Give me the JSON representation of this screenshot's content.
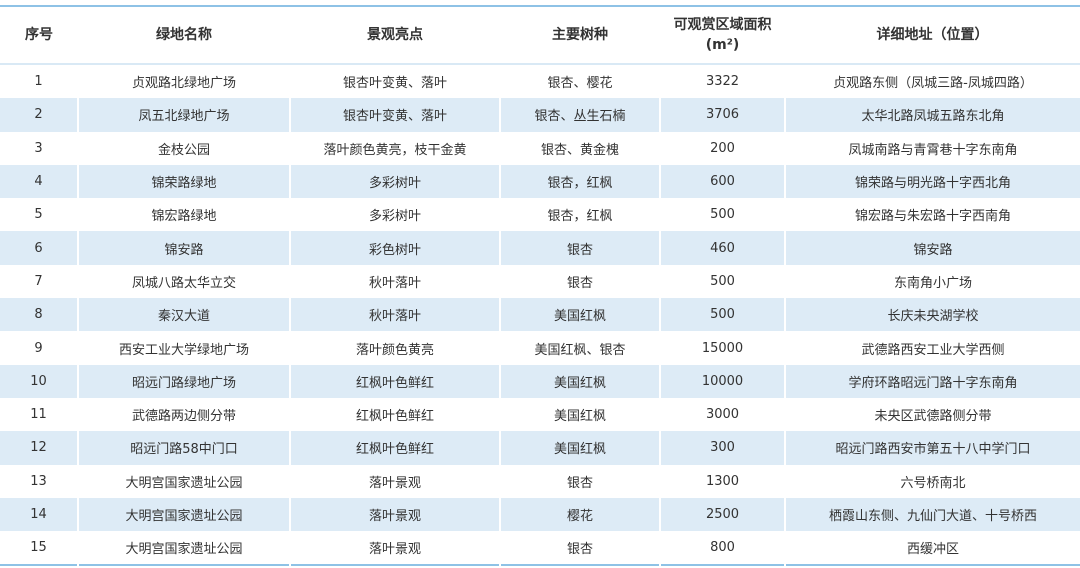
{
  "table": {
    "headers": [
      "序号",
      "绿地名称",
      "景观亮点",
      "主要树种",
      "可观赏区域面积",
      "详细地址（位置）"
    ],
    "area_unit": "(m²)",
    "rows": [
      [
        "1",
        "贞观路北绿地广场",
        "银杏叶变黄、落叶",
        "银杏、樱花",
        "3322",
        "贞观路东侧（凤城三路-凤城四路）"
      ],
      [
        "2",
        "凤五北绿地广场",
        "银杏叶变黄、落叶",
        "银杏、丛生石楠",
        "3706",
        "太华北路凤城五路东北角"
      ],
      [
        "3",
        "金枝公园",
        "落叶颜色黄亮，枝干金黄",
        "银杏、黄金槐",
        "200",
        "凤城南路与青霄巷十字东南角"
      ],
      [
        "4",
        "锦荣路绿地",
        "多彩树叶",
        "银杏，红枫",
        "600",
        "锦荣路与明光路十字西北角"
      ],
      [
        "5",
        "锦宏路绿地",
        "多彩树叶",
        "银杏，红枫",
        "500",
        "锦宏路与朱宏路十字西南角"
      ],
      [
        "6",
        "锦安路",
        "彩色树叶",
        "银杏",
        "460",
        "锦安路"
      ],
      [
        "7",
        "凤城八路太华立交",
        "秋叶落叶",
        "银杏",
        "500",
        "东南角小广场"
      ],
      [
        "8",
        "秦汉大道",
        "秋叶落叶",
        "美国红枫",
        "500",
        "长庆未央湖学校"
      ],
      [
        "9",
        "西安工业大学绿地广场",
        "落叶颜色黄亮",
        "美国红枫、银杏",
        "15000",
        "武德路西安工业大学西侧"
      ],
      [
        "10",
        "昭远门路绿地广场",
        "红枫叶色鲜红",
        "美国红枫",
        "10000",
        "学府环路昭远门路十字东南角"
      ],
      [
        "11",
        "武德路两边侧分带",
        "红枫叶色鲜红",
        "美国红枫",
        "3000",
        "未央区武德路侧分带"
      ],
      [
        "12",
        "昭远门路58中门口",
        "红枫叶色鲜红",
        "美国红枫",
        "300",
        "昭远门路西安市第五十八中学门口"
      ],
      [
        "13",
        "大明宫国家遗址公园",
        "落叶景观",
        "银杏",
        "1300",
        "六号桥南北"
      ],
      [
        "14",
        "大明宫国家遗址公园",
        "落叶景观",
        "樱花",
        "2500",
        "栖霞山东侧、九仙门大道、十号桥西"
      ],
      [
        "15",
        "大明宫国家遗址公园",
        "落叶景观",
        "银杏",
        "800",
        "西缓冲区"
      ]
    ]
  },
  "colors": {
    "stripe": "#ddebf6",
    "rule": "#8ec2e6"
  }
}
